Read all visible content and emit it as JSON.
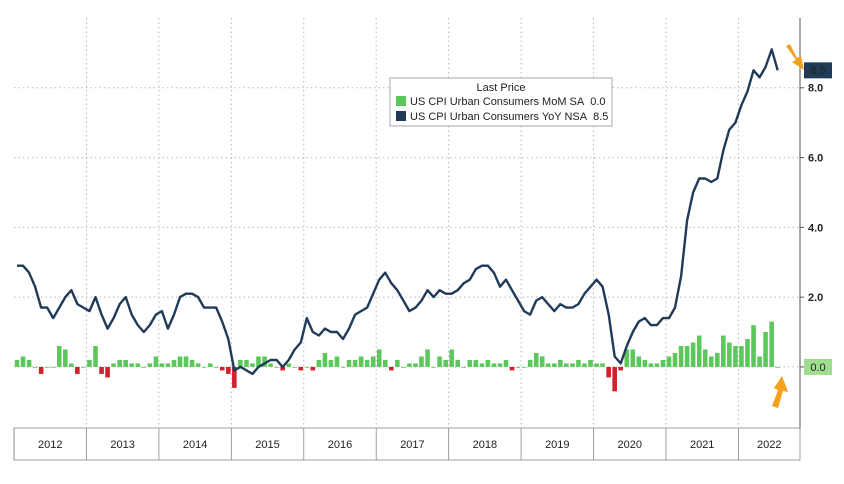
{
  "chart_data": {
    "type": "bar_line",
    "legend_title": "Last Price",
    "legend": "top-center",
    "grid": true,
    "x": [
      2012.0,
      2012.083,
      2012.167,
      2012.25,
      2012.333,
      2012.417,
      2012.5,
      2012.583,
      2012.667,
      2012.75,
      2012.833,
      2012.917,
      2013.0,
      2013.083,
      2013.167,
      2013.25,
      2013.333,
      2013.417,
      2013.5,
      2013.583,
      2013.667,
      2013.75,
      2013.833,
      2013.917,
      2014.0,
      2014.083,
      2014.167,
      2014.25,
      2014.333,
      2014.417,
      2014.5,
      2014.583,
      2014.667,
      2014.75,
      2014.833,
      2014.917,
      2015.0,
      2015.083,
      2015.167,
      2015.25,
      2015.333,
      2015.417,
      2015.5,
      2015.583,
      2015.667,
      2015.75,
      2015.833,
      2015.917,
      2016.0,
      2016.083,
      2016.167,
      2016.25,
      2016.333,
      2016.417,
      2016.5,
      2016.583,
      2016.667,
      2016.75,
      2016.833,
      2016.917,
      2017.0,
      2017.083,
      2017.167,
      2017.25,
      2017.333,
      2017.417,
      2017.5,
      2017.583,
      2017.667,
      2017.75,
      2017.833,
      2017.917,
      2018.0,
      2018.083,
      2018.167,
      2018.25,
      2018.333,
      2018.417,
      2018.5,
      2018.583,
      2018.667,
      2018.75,
      2018.833,
      2018.917,
      2019.0,
      2019.083,
      2019.167,
      2019.25,
      2019.333,
      2019.417,
      2019.5,
      2019.583,
      2019.667,
      2019.75,
      2019.833,
      2019.917,
      2020.0,
      2020.083,
      2020.167,
      2020.25,
      2020.333,
      2020.417,
      2020.5,
      2020.583,
      2020.667,
      2020.75,
      2020.833,
      2020.917,
      2021.0,
      2021.083,
      2021.167,
      2021.25,
      2021.333,
      2021.417,
      2021.5,
      2021.583,
      2021.667,
      2021.75,
      2021.833,
      2021.917,
      2022.0,
      2022.083,
      2022.167,
      2022.25,
      2022.333,
      2022.417,
      2022.5
    ],
    "series": [
      {
        "name": "US CPI Urban Consumers MoM SA",
        "kind": "bar",
        "color": "#5cc85c",
        "negative_color": "#d0202a",
        "last_label": "0.0",
        "values": [
          0.2,
          0.3,
          0.2,
          0.0,
          -0.2,
          0.0,
          0.0,
          0.6,
          0.5,
          0.1,
          -0.2,
          0.0,
          0.2,
          0.6,
          -0.2,
          -0.3,
          0.1,
          0.2,
          0.2,
          0.1,
          0.1,
          0.0,
          0.1,
          0.3,
          0.1,
          0.1,
          0.2,
          0.3,
          0.3,
          0.2,
          0.1,
          0.0,
          0.1,
          0.0,
          -0.1,
          -0.2,
          -0.6,
          0.2,
          0.2,
          0.1,
          0.3,
          0.3,
          0.1,
          0.0,
          -0.1,
          0.1,
          0.0,
          -0.1,
          0.0,
          -0.1,
          0.2,
          0.4,
          0.2,
          0.3,
          0.0,
          0.2,
          0.2,
          0.3,
          0.2,
          0.3,
          0.5,
          0.2,
          -0.1,
          0.2,
          0.0,
          0.1,
          0.1,
          0.3,
          0.5,
          0.0,
          0.3,
          0.2,
          0.5,
          0.2,
          0.0,
          0.2,
          0.2,
          0.1,
          0.2,
          0.1,
          0.1,
          0.2,
          -0.1,
          0.0,
          0.0,
          0.2,
          0.4,
          0.3,
          0.1,
          0.1,
          0.2,
          0.1,
          0.1,
          0.2,
          0.1,
          0.2,
          0.1,
          0.1,
          -0.3,
          -0.7,
          -0.1,
          0.5,
          0.5,
          0.3,
          0.2,
          0.1,
          0.1,
          0.2,
          0.3,
          0.4,
          0.6,
          0.6,
          0.7,
          0.9,
          0.5,
          0.3,
          0.4,
          0.9,
          0.7,
          0.6,
          0.6,
          0.8,
          1.2,
          0.3,
          1.0,
          1.3,
          0.0
        ]
      },
      {
        "name": "US CPI Urban Consumers YoY NSA",
        "kind": "line",
        "color": "#1f3b57",
        "last_label": "8.5",
        "values": [
          2.9,
          2.9,
          2.7,
          2.3,
          1.7,
          1.7,
          1.4,
          1.7,
          2.0,
          2.2,
          1.8,
          1.7,
          1.6,
          2.0,
          1.5,
          1.1,
          1.4,
          1.8,
          2.0,
          1.5,
          1.2,
          1.0,
          1.2,
          1.5,
          1.6,
          1.1,
          1.5,
          2.0,
          2.1,
          2.1,
          2.0,
          1.7,
          1.7,
          1.7,
          1.3,
          0.8,
          -0.1,
          0.0,
          -0.1,
          -0.2,
          0.0,
          0.1,
          0.2,
          0.2,
          0.0,
          0.2,
          0.5,
          0.7,
          1.4,
          1.0,
          0.9,
          1.1,
          1.0,
          1.0,
          0.8,
          1.1,
          1.5,
          1.6,
          1.7,
          2.1,
          2.5,
          2.7,
          2.4,
          2.2,
          1.9,
          1.6,
          1.7,
          1.9,
          2.2,
          2.0,
          2.2,
          2.1,
          2.1,
          2.2,
          2.4,
          2.5,
          2.8,
          2.9,
          2.9,
          2.7,
          2.3,
          2.5,
          2.2,
          1.9,
          1.6,
          1.5,
          1.9,
          2.0,
          1.8,
          1.6,
          1.8,
          1.7,
          1.7,
          1.8,
          2.1,
          2.3,
          2.5,
          2.3,
          1.5,
          0.3,
          0.1,
          0.6,
          1.0,
          1.3,
          1.4,
          1.2,
          1.2,
          1.4,
          1.4,
          1.7,
          2.6,
          4.2,
          5.0,
          5.4,
          5.4,
          5.3,
          5.4,
          6.2,
          6.8,
          7.0,
          7.5,
          7.9,
          8.5,
          8.3,
          8.6,
          9.1,
          8.5
        ]
      }
    ],
    "xlim": [
      2012.0,
      2022.85
    ],
    "xticks": [
      2012,
      2013,
      2014,
      2015,
      2016,
      2017,
      2018,
      2019,
      2020,
      2021,
      2022
    ],
    "ylim": [
      -1.75,
      10
    ],
    "yticks": [
      {
        "value": 0,
        "label": "0.0"
      },
      {
        "value": 2,
        "label": "2.0"
      },
      {
        "value": 4,
        "label": "4.0"
      },
      {
        "value": 6,
        "label": "6.0"
      },
      {
        "value": 8,
        "label": "8.0"
      }
    ]
  }
}
